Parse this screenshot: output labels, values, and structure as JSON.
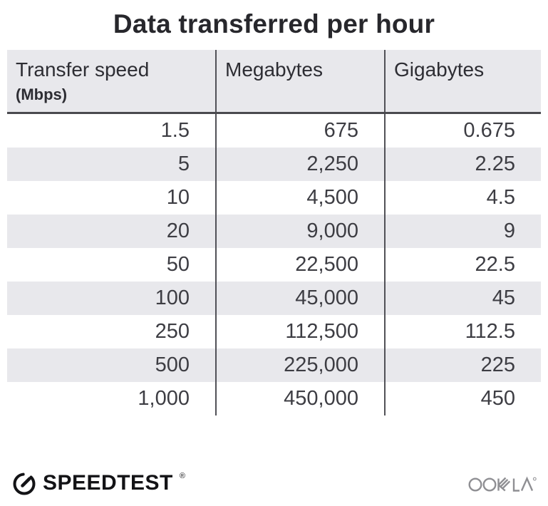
{
  "title": "Data transferred per hour",
  "table": {
    "columns": [
      {
        "label": "Transfer speed",
        "sublabel": "(Mbps)"
      },
      {
        "label": "Megabytes"
      },
      {
        "label": "Gigabytes"
      }
    ],
    "rows": [
      [
        "1.5",
        "675",
        "0.675"
      ],
      [
        "5",
        "2,250",
        "2.25"
      ],
      [
        "10",
        "4,500",
        "4.5"
      ],
      [
        "20",
        "9,000",
        "9"
      ],
      [
        "50",
        "22,500",
        "22.5"
      ],
      [
        "100",
        "45,000",
        "45"
      ],
      [
        "250",
        "112,500",
        "112.5"
      ],
      [
        "500",
        "225,000",
        "225"
      ],
      [
        "1,000",
        "450,000",
        "450"
      ]
    ]
  },
  "footer": {
    "brand": "SPEEDTEST",
    "brand_mark": "®",
    "company": "OOKLA",
    "company_mark": "®"
  },
  "colors": {
    "stripe_gray": "#e8e8ec",
    "header_rule": "#4a4a4f",
    "column_divider": "#515157",
    "text_dark": "#2d2d33",
    "brand_black": "#131316",
    "ookla_gray": "#8f8f93"
  },
  "chart_data": {
    "type": "table",
    "title": "Data transferred per hour",
    "columns": [
      "Transfer speed (Mbps)",
      "Megabytes",
      "Gigabytes"
    ],
    "rows": [
      [
        1.5,
        675,
        0.675
      ],
      [
        5,
        2250,
        2.25
      ],
      [
        10,
        4500,
        4.5
      ],
      [
        20,
        9000,
        9
      ],
      [
        50,
        22500,
        22.5
      ],
      [
        100,
        45000,
        45
      ],
      [
        250,
        112500,
        112.5
      ],
      [
        500,
        225000,
        225
      ],
      [
        1000,
        450000,
        450
      ]
    ]
  }
}
